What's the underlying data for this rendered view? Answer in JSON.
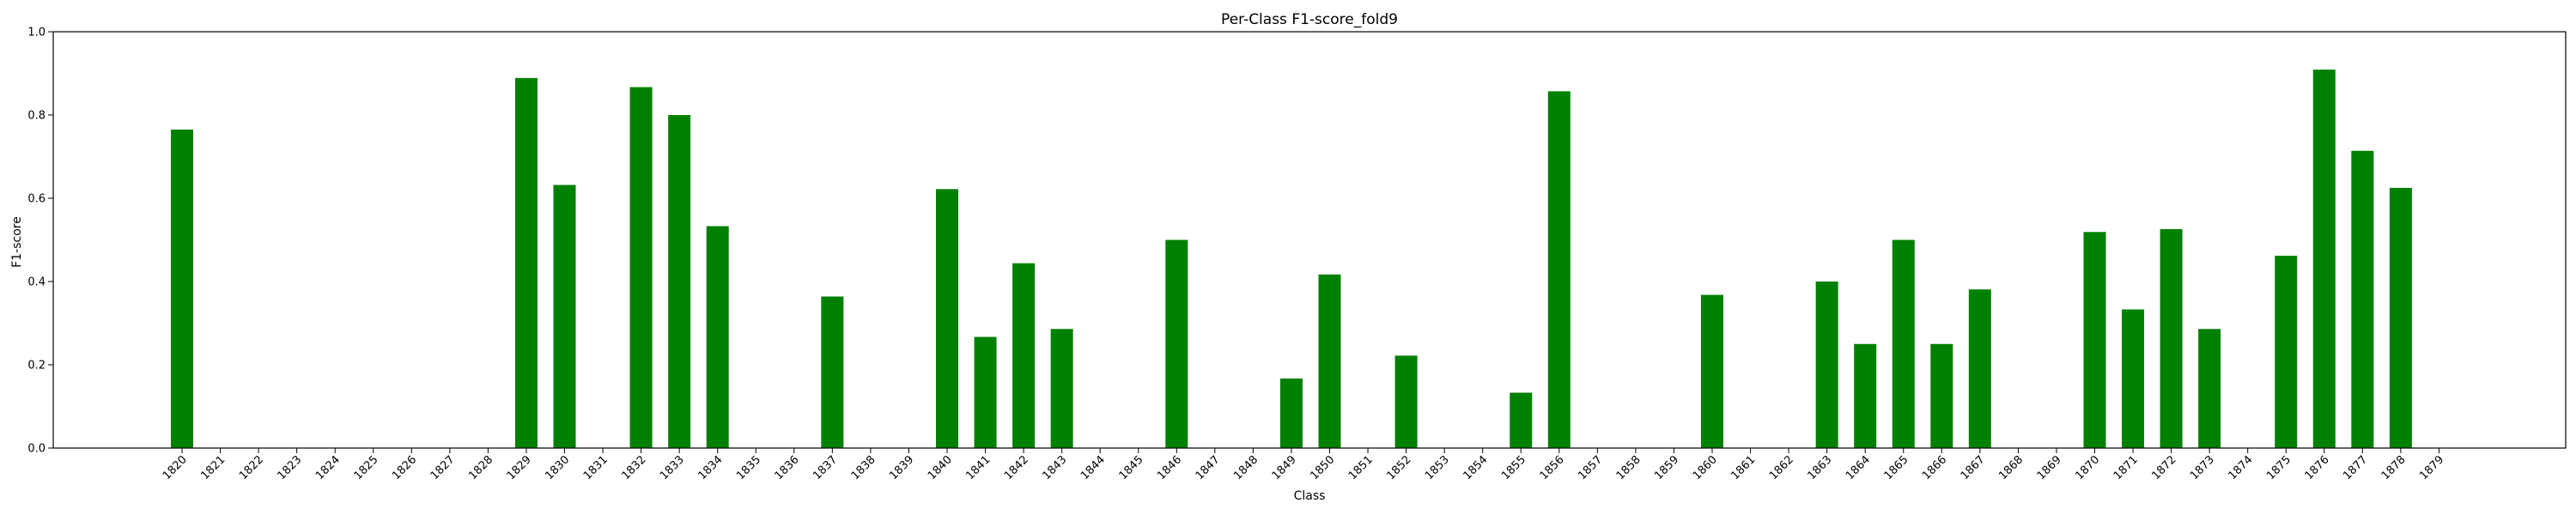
{
  "chart_data": {
    "type": "bar",
    "title": "Per-Class F1-score_fold9",
    "xlabel": "Class",
    "ylabel": "F1-score",
    "ylim": [
      0,
      1.0
    ],
    "yticks": [
      "0.0",
      "0.2",
      "0.4",
      "0.6",
      "0.8",
      "1.0"
    ],
    "grid": false,
    "bar_color": "#008000",
    "categories": [
      "1820",
      "1821",
      "1822",
      "1823",
      "1824",
      "1825",
      "1826",
      "1827",
      "1828",
      "1829",
      "1830",
      "1831",
      "1832",
      "1833",
      "1834",
      "1835",
      "1836",
      "1837",
      "1838",
      "1839",
      "1840",
      "1841",
      "1842",
      "1843",
      "1844",
      "1845",
      "1846",
      "1847",
      "1848",
      "1849",
      "1850",
      "1851",
      "1852",
      "1853",
      "1854",
      "1855",
      "1856",
      "1857",
      "1858",
      "1859",
      "1860",
      "1861",
      "1862",
      "1863",
      "1864",
      "1865",
      "1866",
      "1867",
      "1868",
      "1869",
      "1870",
      "1871",
      "1872",
      "1873",
      "1874",
      "1875",
      "1876",
      "1877",
      "1878",
      "1879"
    ],
    "values": [
      0.765,
      0,
      0,
      0,
      0,
      0,
      0,
      0,
      0,
      0.889,
      0.632,
      0,
      0.867,
      0.8,
      0.533,
      0,
      0,
      0.364,
      0,
      0,
      0.622,
      0.267,
      0.444,
      0.286,
      0,
      0,
      0.5,
      0,
      0,
      0.167,
      0.417,
      0,
      0.222,
      0,
      0,
      0.133,
      0.857,
      0,
      0,
      0,
      0.368,
      0,
      0,
      0.4,
      0.25,
      0.5,
      0.25,
      0.381,
      0,
      0,
      0.519,
      0.333,
      0.526,
      0.286,
      0,
      0.462,
      0.909,
      0.714,
      0.625,
      0
    ]
  }
}
